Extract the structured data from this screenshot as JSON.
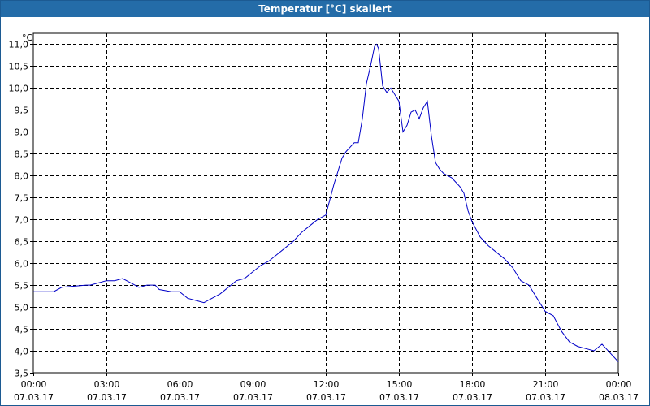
{
  "window": {
    "title": "Temperatur [°C] skaliert"
  },
  "chart_data": {
    "type": "line",
    "title": "Temperatur [°C] skaliert",
    "ylabel": "°C",
    "xlabel": "",
    "ylim": [
      3.5,
      11.25
    ],
    "grid": true,
    "yticks": [
      "3,5",
      "4,0",
      "4,5",
      "5,0",
      "5,5",
      "6,0",
      "6,5",
      "7,0",
      "7,5",
      "8,0",
      "8,5",
      "9,0",
      "9,5",
      "10,0",
      "10,5",
      "11,0"
    ],
    "xticks": [
      {
        "time": "00:00",
        "date": "07.03.17"
      },
      {
        "time": "03:00",
        "date": "07.03.17"
      },
      {
        "time": "06:00",
        "date": "07.03.17"
      },
      {
        "time": "09:00",
        "date": "07.03.17"
      },
      {
        "time": "12:00",
        "date": "07.03.17"
      },
      {
        "time": "15:00",
        "date": "07.03.17"
      },
      {
        "time": "18:00",
        "date": "07.03.17"
      },
      {
        "time": "21:00",
        "date": "07.03.17"
      },
      {
        "time": "00:00",
        "date": "08.03.17"
      }
    ],
    "series": [
      {
        "color": "#0000c8",
        "x": [
          "00:00",
          "00:50",
          "01:10",
          "02:10",
          "02:20",
          "03:00",
          "03:20",
          "03:40",
          "04:10",
          "04:20",
          "04:40",
          "05:00",
          "05:10",
          "05:40",
          "06:00",
          "06:20",
          "06:40",
          "07:00",
          "07:20",
          "07:40",
          "08:00",
          "08:20",
          "08:40",
          "09:00",
          "09:20",
          "09:40",
          "10:00",
          "10:20",
          "10:40",
          "11:00",
          "11:20",
          "11:40",
          "12:00",
          "12:20",
          "12:40",
          "12:50",
          "13:00",
          "13:10",
          "13:20",
          "13:30",
          "13:40",
          "13:50",
          "14:00",
          "14:05",
          "14:10",
          "14:20",
          "14:30",
          "14:40",
          "14:50",
          "15:00",
          "15:10",
          "15:20",
          "15:30",
          "15:40",
          "15:50",
          "16:00",
          "16:10",
          "16:20",
          "16:30",
          "16:40",
          "16:50",
          "17:00",
          "17:10",
          "17:20",
          "17:30",
          "17:40",
          "17:50",
          "18:00",
          "18:20",
          "18:40",
          "19:00",
          "19:20",
          "19:40",
          "20:00",
          "20:20",
          "20:40",
          "21:00",
          "21:20",
          "21:40",
          "22:00",
          "22:20",
          "22:40",
          "23:00",
          "23:20",
          "23:40",
          "00:00"
        ],
        "y": [
          5.35,
          5.35,
          5.45,
          5.5,
          5.5,
          5.6,
          5.6,
          5.65,
          5.5,
          5.45,
          5.5,
          5.5,
          5.4,
          5.35,
          5.35,
          5.2,
          5.15,
          5.1,
          5.2,
          5.3,
          5.45,
          5.6,
          5.65,
          5.8,
          5.95,
          6.05,
          6.2,
          6.35,
          6.5,
          6.7,
          6.85,
          7.0,
          7.1,
          7.8,
          8.4,
          8.55,
          8.65,
          8.75,
          8.75,
          9.3,
          10.1,
          10.5,
          10.95,
          11.0,
          10.9,
          10.05,
          9.9,
          10.0,
          9.85,
          9.7,
          9.0,
          9.15,
          9.45,
          9.5,
          9.3,
          9.55,
          9.7,
          8.9,
          8.3,
          8.15,
          8.05,
          8.0,
          7.95,
          7.85,
          7.75,
          7.6,
          7.2,
          6.95,
          6.6,
          6.4,
          6.25,
          6.1,
          5.9,
          5.6,
          5.5,
          5.2,
          4.9,
          4.8,
          4.45,
          4.2,
          4.1,
          4.05,
          4.0,
          4.15,
          3.95,
          3.75
        ]
      }
    ]
  }
}
